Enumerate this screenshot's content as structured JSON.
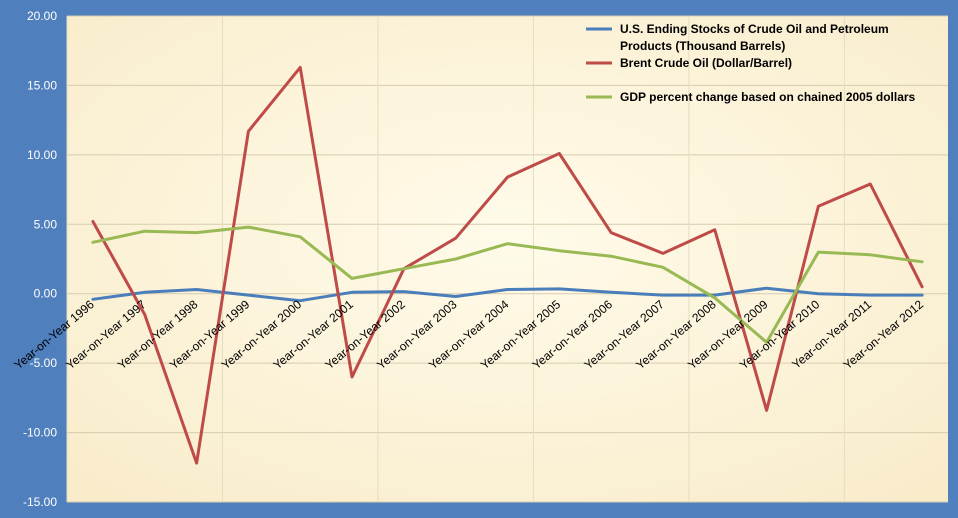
{
  "chart_data": {
    "type": "line",
    "categories": [
      "Year-on-Year 1996",
      "Year-on-Year 1997",
      "Year-on-Year 1998",
      "Year-on-Year 1999",
      "Year-on-Year 2000",
      "Year-on-Year 2001",
      "Year-on-Year 2002",
      "Year-on-Year 2003",
      "Year-on-Year 2004",
      "Year-on-Year 2005",
      "Year-on-Year 2006",
      "Year-on-Year 2007",
      "Year-on-Year 2008",
      "Year-on-Year 2009",
      "Year-on-Year 2010",
      "Year-on-Year 2011",
      "Year-on-Year 2012"
    ],
    "ylim": [
      -15,
      20
    ],
    "yticks": [
      "20.00",
      "15.00",
      "10.00",
      "5.00",
      "0.00",
      "-5.00",
      "-10.00",
      "-15.00"
    ],
    "grid": true,
    "legend_position": "top-right",
    "series": [
      {
        "name": "U.S. Ending Stocks of Crude Oil and Petroleum Products (Thousand Barrels)",
        "name_lines": [
          "U.S. Ending Stocks of Crude Oil and Petroleum",
          "Products (Thousand Barrels)"
        ],
        "color": "#4a7ebb",
        "values": [
          -0.4,
          0.1,
          0.3,
          -0.1,
          -0.5,
          0.1,
          0.15,
          -0.2,
          0.3,
          0.35,
          0.1,
          -0.1,
          -0.1,
          0.4,
          0.0,
          -0.1,
          -0.1
        ]
      },
      {
        "name": "Brent Crude Oil (Dollar/Barrel)",
        "name_lines": [
          "Brent Crude Oil (Dollar/Barrel)"
        ],
        "color": "#be4b48",
        "values": [
          5.2,
          -1.5,
          -12.2,
          11.7,
          16.3,
          -6.0,
          1.8,
          4.0,
          8.4,
          10.1,
          4.4,
          2.9,
          4.6,
          -8.4,
          6.3,
          7.9,
          0.5
        ]
      },
      {
        "name": "GDP percent change based on chained 2005 dollars",
        "name_lines": [
          "GDP percent change based on chained 2005 dollars"
        ],
        "color": "#98b954",
        "values": [
          3.7,
          4.5,
          4.4,
          4.8,
          4.1,
          1.1,
          1.8,
          2.5,
          3.6,
          3.1,
          2.7,
          1.9,
          -0.3,
          -3.5,
          3.0,
          2.8,
          2.3
        ]
      }
    ]
  }
}
